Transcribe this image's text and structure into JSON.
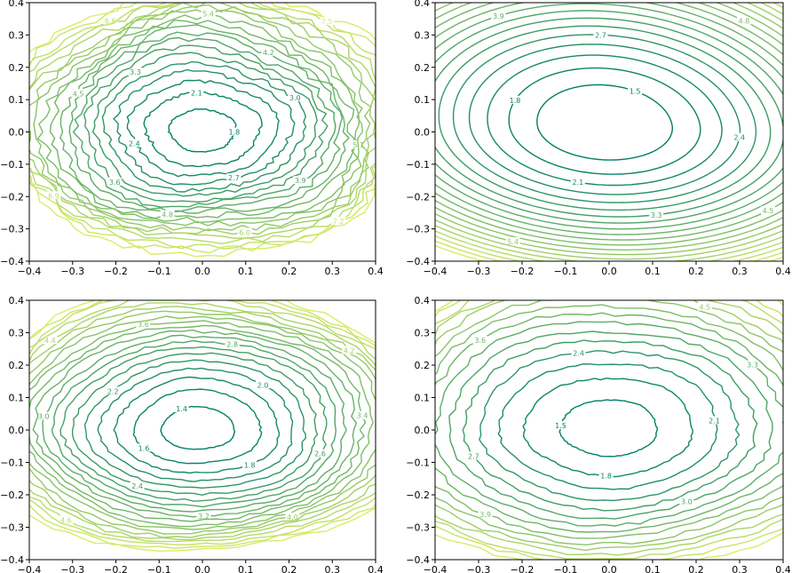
{
  "chart_data": [
    {
      "type": "contour",
      "panel": "top-left",
      "xlim": [
        -0.4,
        0.4
      ],
      "ylim": [
        -0.4,
        0.4
      ],
      "xticks": [
        "−0.4",
        "−0.3",
        "−0.2",
        "−0.1",
        "0.0",
        "0.1",
        "0.2",
        "0.3",
        "0.4"
      ],
      "yticks": [
        "−0.4",
        "−0.3",
        "−0.2",
        "−0.1",
        "0.0",
        "0.1",
        "0.2",
        "0.3",
        "0.4"
      ],
      "center": [
        0.0,
        0.0
      ],
      "min_value": 1.65,
      "curvature": [
        26,
        30
      ],
      "noise": 0.35,
      "levels": [
        1.8,
        2.1,
        2.4,
        2.7,
        3.0,
        3.3,
        3.6,
        3.9,
        4.2,
        4.5,
        4.8,
        5.1,
        5.4,
        5.7,
        6.0,
        6.3,
        6.6,
        6.9,
        7.2,
        7.5
      ]
    },
    {
      "type": "contour",
      "panel": "top-right",
      "xlim": [
        -0.4,
        0.4
      ],
      "ylim": [
        -0.4,
        0.4
      ],
      "xticks": [
        "−0.4",
        "−0.3",
        "−0.2",
        "−0.1",
        "0.0",
        "0.1",
        "0.2",
        "0.3",
        "0.4"
      ],
      "yticks": [
        "−0.4",
        "−0.3",
        "−0.2",
        "−0.1",
        "0.0",
        "0.1",
        "0.2",
        "0.3",
        "0.4"
      ],
      "center": [
        -0.01,
        0.02
      ],
      "min_value": 1.2,
      "curvature": [
        12.5,
        19
      ],
      "noise": 0.0,
      "levels": [
        1.5,
        1.8,
        2.1,
        2.4,
        2.7,
        3.0,
        3.3,
        3.6,
        3.9,
        4.2,
        4.5,
        4.8,
        5.1,
        5.4,
        5.7,
        6.0,
        6.3,
        6.6,
        6.9,
        7.2
      ]
    },
    {
      "type": "contour",
      "panel": "bottom-left",
      "xlim": [
        -0.4,
        0.4
      ],
      "ylim": [
        -0.4,
        0.4
      ],
      "xticks": [
        "−0.4",
        "−0.3",
        "−0.2",
        "−0.1",
        "0.0",
        "0.1",
        "0.2",
        "0.3",
        "0.4"
      ],
      "yticks": [
        "−0.4",
        "−0.3",
        "−0.2",
        "−0.1",
        "0.0",
        "0.1",
        "0.2",
        "0.3",
        "0.4"
      ],
      "center": [
        -0.01,
        0.0
      ],
      "min_value": 1.3,
      "curvature": [
        14,
        20
      ],
      "noise": 0.18,
      "levels": [
        1.4,
        1.6,
        1.8,
        2.0,
        2.2,
        2.4,
        2.6,
        2.8,
        3.0,
        3.2,
        3.4,
        3.6,
        3.8,
        4.0,
        4.2,
        4.4,
        4.6,
        4.8,
        5.0,
        5.2
      ]
    },
    {
      "type": "contour",
      "panel": "bottom-right",
      "xlim": [
        -0.4,
        0.4
      ],
      "ylim": [
        -0.4,
        0.4
      ],
      "xticks": [
        "−0.4",
        "−0.3",
        "−0.2",
        "−0.1",
        "0.0",
        "0.1",
        "0.2",
        "0.3",
        "0.4"
      ],
      "yticks": [
        "−0.4",
        "−0.3",
        "−0.2",
        "−0.1",
        "0.0",
        "0.1",
        "0.2",
        "0.3",
        "0.4"
      ],
      "center": [
        0.0,
        0.0
      ],
      "min_value": 1.35,
      "curvature": [
        12,
        17
      ],
      "noise": 0.18,
      "levels": [
        1.5,
        1.8,
        2.1,
        2.4,
        2.7,
        3.0,
        3.3,
        3.6,
        3.9,
        4.2,
        4.5,
        4.8,
        5.1,
        5.4,
        5.7
      ]
    }
  ],
  "colors": {
    "low": "#007f66",
    "high": "#ffff66",
    "axis": "#000000"
  }
}
